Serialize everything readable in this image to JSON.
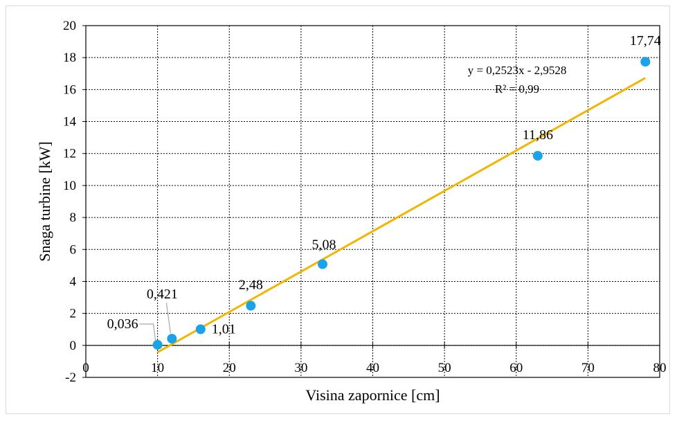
{
  "chart_data": {
    "type": "scatter",
    "title": "",
    "xlabel": "Visina zapornice [cm]",
    "ylabel": "Snaga turbine [kW]",
    "xlim": [
      0,
      80
    ],
    "ylim": [
      -2,
      20
    ],
    "xticks": [
      0,
      10,
      20,
      30,
      40,
      50,
      60,
      70,
      80
    ],
    "yticks": [
      -2,
      0,
      2,
      4,
      6,
      8,
      10,
      12,
      14,
      16,
      18,
      20
    ],
    "grid": true,
    "series": [
      {
        "x": [
          10,
          12,
          16,
          23,
          33,
          63,
          78
        ],
        "y": [
          0.036,
          0.421,
          1.01,
          2.48,
          5.08,
          11.86,
          17.74
        ],
        "labels": [
          "0,036",
          "0,421",
          "1,01",
          "2,48",
          "5,08",
          "11,86",
          "17,74"
        ],
        "color": "#1aa3e6"
      }
    ],
    "trendline": {
      "type": "linear",
      "slope": 0.2523,
      "intercept": -2.9528,
      "x_range": [
        10,
        78
      ],
      "color": "#f2b600",
      "equation": "y = 0,2523x - 2,9528",
      "r2": "R² = 0,99"
    }
  }
}
